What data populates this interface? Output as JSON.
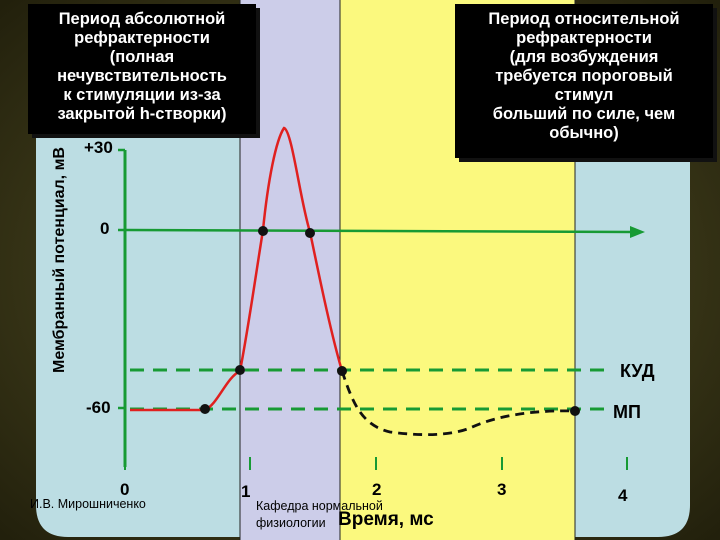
{
  "callouts": {
    "absolute": [
      "Период абсолютной",
      "рефрактерности",
      "(полная",
      "нечувствительность",
      "к стимуляции из-за",
      "закрытой h-створки)"
    ],
    "relative": [
      "Период относительной",
      "рефрактерности",
      "(для возбуждения",
      "требуется пороговый",
      "стимул",
      "больший по силе, чем",
      "обычно)"
    ]
  },
  "axes": {
    "ylabel": "Мембранный потенциал, мВ",
    "xlabel": "Время, мс",
    "y_ticks": [
      "+30",
      "0",
      "-60"
    ],
    "x_ticks": [
      "0",
      "1",
      "2",
      "3",
      "4"
    ]
  },
  "thresholds": {
    "kud": "КУД",
    "mp": "МП"
  },
  "credits": {
    "author": "И.В. Мирошниченко",
    "dept_line1": "Кафедра нормальной",
    "dept_line2": "физиологии"
  },
  "colors": {
    "background": "#2f2d14",
    "rest_zone": "#bcdde3",
    "absolute_zone": "#cccde9",
    "relative_zone": "#fbf97e",
    "axis": "#179a34",
    "dashed_threshold": "#179a34",
    "action_potential": "#e0201f",
    "after_potential": "#111111"
  }
}
